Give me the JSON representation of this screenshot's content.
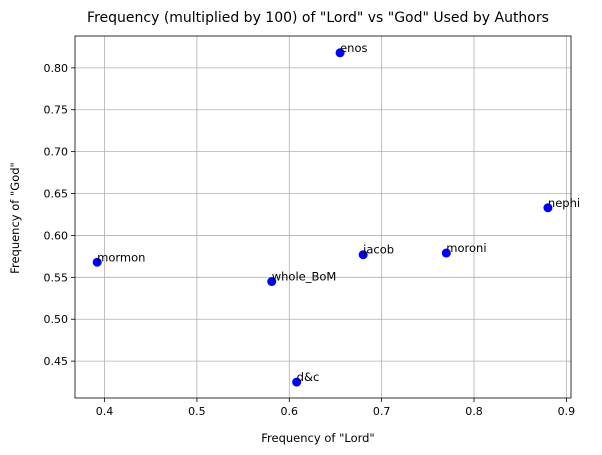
{
  "chart_data": {
    "type": "scatter",
    "title": "Frequency (multiplied by 100) of \"Lord\" vs \"God\" Used by Authors",
    "xlabel": "Frequency of \"Lord\"",
    "ylabel": "Frequency of \"God\"",
    "xlim": [
      0.368,
      0.905
    ],
    "ylim": [
      0.406,
      0.838
    ],
    "xticks": [
      0.4,
      0.5,
      0.6,
      0.7,
      0.8,
      0.9
    ],
    "xtick_labels": [
      "0.4",
      "0.5",
      "0.6",
      "0.7",
      "0.8",
      "0.9"
    ],
    "yticks": [
      0.45,
      0.5,
      0.55,
      0.6,
      0.65,
      0.7,
      0.75,
      0.8
    ],
    "ytick_labels": [
      "0.45",
      "0.50",
      "0.55",
      "0.60",
      "0.65",
      "0.70",
      "0.75",
      "0.80"
    ],
    "grid": true,
    "marker_color": "#0000ff",
    "points": [
      {
        "label": "enos",
        "x": 0.655,
        "y": 0.818
      },
      {
        "label": "nephi",
        "x": 0.88,
        "y": 0.633
      },
      {
        "label": "moroni",
        "x": 0.77,
        "y": 0.579
      },
      {
        "label": "jacob",
        "x": 0.68,
        "y": 0.577
      },
      {
        "label": "mormon",
        "x": 0.392,
        "y": 0.568
      },
      {
        "label": "whole_BoM",
        "x": 0.581,
        "y": 0.545
      },
      {
        "label": "d&c",
        "x": 0.608,
        "y": 0.425
      }
    ]
  }
}
